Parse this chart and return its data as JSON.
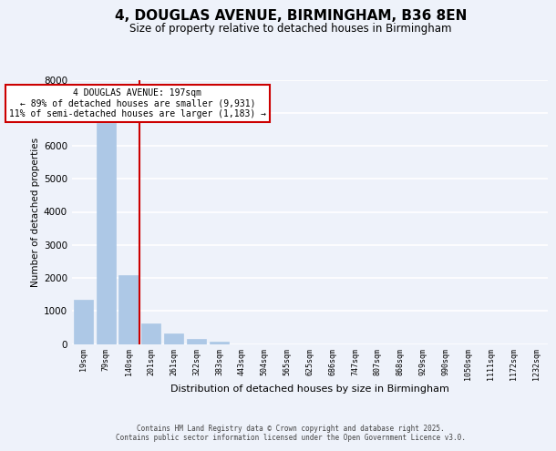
{
  "title": "4, DOUGLAS AVENUE, BIRMINGHAM, B36 8EN",
  "subtitle": "Size of property relative to detached houses in Birmingham",
  "xlabel": "Distribution of detached houses by size in Birmingham",
  "ylabel": "Number of detached properties",
  "bin_labels": [
    "19sqm",
    "79sqm",
    "140sqm",
    "201sqm",
    "261sqm",
    "322sqm",
    "383sqm",
    "443sqm",
    "504sqm",
    "565sqm",
    "625sqm",
    "686sqm",
    "747sqm",
    "807sqm",
    "868sqm",
    "929sqm",
    "990sqm",
    "1050sqm",
    "1111sqm",
    "1172sqm",
    "1232sqm"
  ],
  "bar_values": [
    1340,
    6680,
    2090,
    630,
    310,
    160,
    70,
    0,
    0,
    0,
    0,
    0,
    0,
    0,
    0,
    0,
    0,
    0,
    0,
    0,
    0
  ],
  "bar_color": "#adc8e6",
  "bar_edge_color": "#adc8e6",
  "vline_x_index": 2.5,
  "vline_color": "#cc0000",
  "annotation_text": "4 DOUGLAS AVENUE: 197sqm\n← 89% of detached houses are smaller (9,931)\n11% of semi-detached houses are larger (1,183) →",
  "annotation_box_color": "white",
  "annotation_box_edge_color": "#cc0000",
  "ylim": [
    0,
    8000
  ],
  "yticks": [
    0,
    1000,
    2000,
    3000,
    4000,
    5000,
    6000,
    7000,
    8000
  ],
  "background_color": "#eef2fa",
  "grid_color": "white",
  "footer_line1": "Contains HM Land Registry data © Crown copyright and database right 2025.",
  "footer_line2": "Contains public sector information licensed under the Open Government Licence v3.0."
}
